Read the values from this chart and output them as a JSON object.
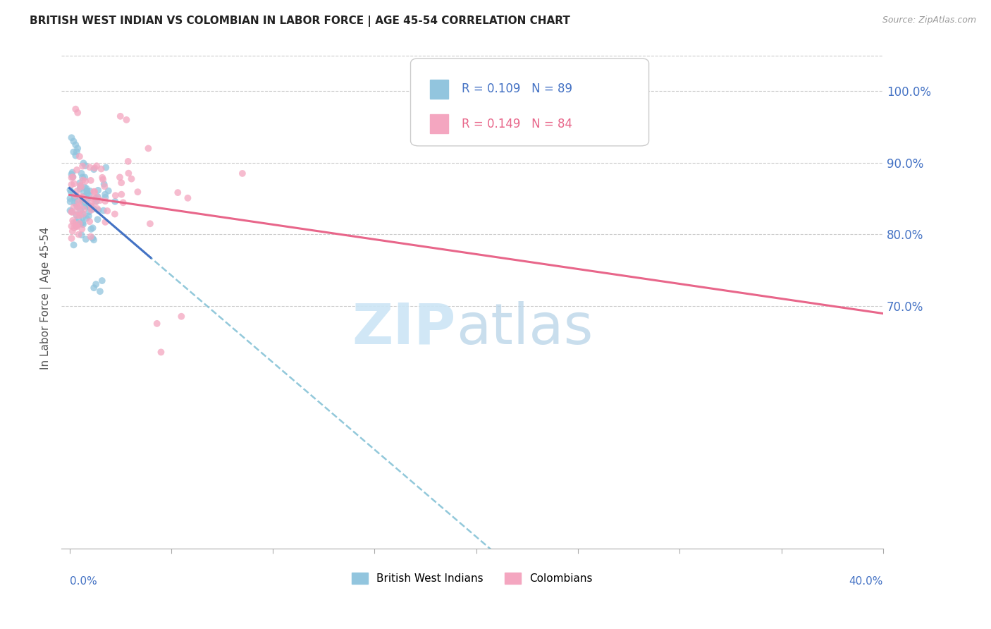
{
  "title": "BRITISH WEST INDIAN VS COLOMBIAN IN LABOR FORCE | AGE 45-54 CORRELATION CHART",
  "source": "Source: ZipAtlas.com",
  "ylabel": "In Labor Force | Age 45-54",
  "legend_r1_text": "R = 0.109   N = 89",
  "legend_r2_text": "R = 0.149   N = 84",
  "color_blue_scatter": "#92c5de",
  "color_pink_scatter": "#f4a6c0",
  "color_blue_line": "#4472c4",
  "color_blue_dash": "#7fbfd4",
  "color_pink_line": "#e8668a",
  "color_axis_labels": "#4472c4",
  "color_grid": "#cccccc",
  "color_watermark_zip": "#cce5f5",
  "color_watermark_atlas": "#b8d4e8",
  "right_ytick_values": [
    1.0,
    0.9,
    0.8,
    0.7
  ],
  "right_ytick_labels": [
    "100.0%",
    "90.0%",
    "80.0%",
    "70.0%"
  ],
  "xlim": [
    -0.004,
    0.4
  ],
  "ylim": [
    0.36,
    1.06
  ]
}
